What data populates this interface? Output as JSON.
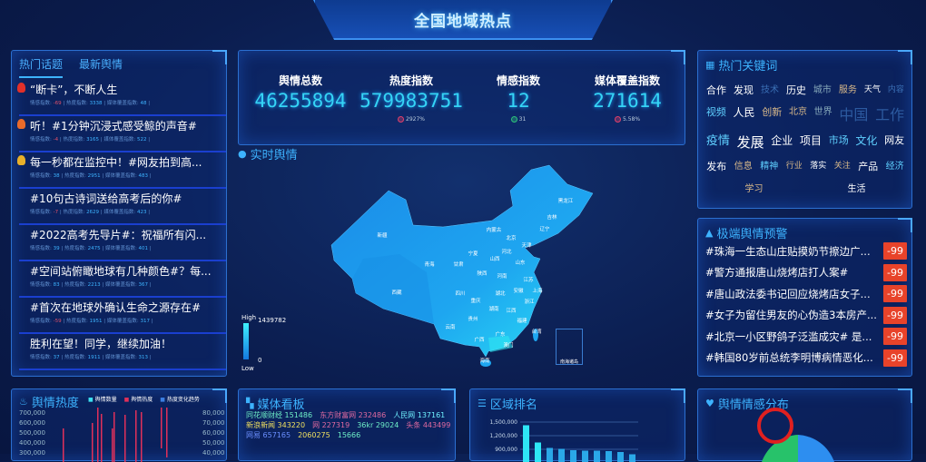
{
  "title": "全国地域热点",
  "left_panel": {
    "tabs": [
      "热门话题",
      "最新舆情"
    ],
    "metric_labels": [
      "情感指数:",
      "热度指数:",
      "媒体覆盖指数:"
    ],
    "topics": [
      {
        "title": "“断卡”，不断人生",
        "sentiment": "-69",
        "heat": "3338",
        "media": "48"
      },
      {
        "title": "听！#1分钟沉浸式感受鲸的声音#",
        "sentiment": "-4",
        "heat": "3165",
        "media": "522"
      },
      {
        "title": "每一秒都在监控中！#网友拍到高...",
        "sentiment": "38",
        "heat": "2951",
        "media": "483"
      },
      {
        "title": "#10句古诗词送给高考后的你#",
        "sentiment": "-7",
        "heat": "2629",
        "media": "423"
      },
      {
        "title": "#2022高考先导片#：祝福所有闪...",
        "sentiment": "39",
        "heat": "2475",
        "media": "401"
      },
      {
        "title": "#空间站俯瞰地球有几种颜色#？每...",
        "sentiment": "83",
        "heat": "2213",
        "media": "367"
      },
      {
        "title": "#首次在地球外确认生命之源存在#",
        "sentiment": "-59",
        "heat": "1951",
        "media": "317"
      },
      {
        "title": "胜利在望！同学，继续加油！",
        "sentiment": "37",
        "heat": "1911",
        "media": "313"
      }
    ]
  },
  "stats": [
    {
      "label": "舆情总数",
      "value": "46255894",
      "change": ""
    },
    {
      "label": "热度指数",
      "value": "579983751",
      "change": "2927%",
      "dir": "down"
    },
    {
      "label": "情感指数",
      "value": "12",
      "change": "31",
      "dir": "up"
    },
    {
      "label": "媒体覆盖指数",
      "value": "271614",
      "change": "5.58%",
      "dir": "down"
    }
  ],
  "map": {
    "title": "实时舆情",
    "legend_high": "High",
    "legend_low": "Low",
    "max": "1439782",
    "min": "0",
    "inset": "南海诸岛",
    "provinces": [
      "新疆",
      "西藏",
      "青海",
      "甘肃",
      "宁夏",
      "内蒙古",
      "黑龙江",
      "吉林",
      "辽宁",
      "北京",
      "天津",
      "河北",
      "山西",
      "山东",
      "陕西",
      "河南",
      "江苏",
      "安徽",
      "上海",
      "湖北",
      "四川",
      "重庆",
      "浙江",
      "湖南",
      "江西",
      "贵州",
      "福建",
      "云南",
      "广西",
      "广东",
      "台湾",
      "澳门",
      "海南"
    ]
  },
  "keywords": {
    "title": "热门关键词",
    "words": [
      "合作",
      "发现",
      "技术",
      "历史",
      "城市",
      "服务",
      "天气",
      "内容",
      "视频",
      "人民",
      "创新",
      "北京",
      "世界",
      "中国",
      "工作",
      "疫情",
      "发展",
      "企业",
      "项目",
      "市场",
      "文化",
      "网友",
      "发布",
      "信息",
      "精神",
      "行业",
      "落实",
      "关注",
      "产品",
      "经济",
      "学习",
      "生活"
    ]
  },
  "warnings": {
    "title": "极端舆情预警",
    "items": [
      {
        "title": "#珠海一生态山庄贴摸奶节擦边广...",
        "score": "-99"
      },
      {
        "title": "#警方通报唐山烧烤店打人案#",
        "score": "-99"
      },
      {
        "title": "#唐山政法委书记回应烧烤店女子...",
        "score": "-99"
      },
      {
        "title": "#女子为留住男友的心伪造3本房产...",
        "score": "-99"
      },
      {
        "title": "#北京一小区野鸽子泛滥成灾# 是...",
        "score": "-99"
      },
      {
        "title": "#韩国80岁前总统李明博病情恶化...",
        "score": "-99"
      }
    ]
  },
  "media_board": {
    "title": "媒体看板",
    "words": [
      "同花顺财经 151486",
      "东方财富网 232486",
      "人民网 137161",
      "新浪新闻 343220",
      "网 227319",
      "36kr 29024",
      "头条 443499",
      "网易 657165",
      "2060275",
      "15666"
    ]
  },
  "colors": {
    "accent": "#3db3ff",
    "digits": "#35d4f5",
    "warning": "#e8432a",
    "background": "#0b1d4f"
  },
  "chart_data": [
    {
      "type": "bar",
      "title": "舆情热度",
      "legend": [
        "舆情数量",
        "舆情热度",
        "热度变化趋势"
      ],
      "y_ticks": [
        "700,000",
        "600,000",
        "500,000",
        "400,000",
        "300,000"
      ],
      "y2_ticks": [
        "80,000",
        "70,000",
        "60,000",
        "50,000",
        "40,000"
      ],
      "ylim": [
        300000,
        700000
      ],
      "y2lim": [
        40000,
        80000
      ],
      "grid": false,
      "legend_placement": "top"
    },
    {
      "type": "bar",
      "title": "区域排名",
      "y_ticks": [
        "1,500,000",
        "1,200,000",
        "900,000"
      ],
      "values": [
        1430000,
        1050000,
        930000,
        910000,
        880000,
        870000,
        870000,
        860000,
        840000,
        790000
      ],
      "ylim": [
        800000,
        1500000
      ],
      "grid": true
    },
    {
      "type": "pie",
      "title": "舆情情感分布",
      "legend_placement": "top-right"
    }
  ]
}
